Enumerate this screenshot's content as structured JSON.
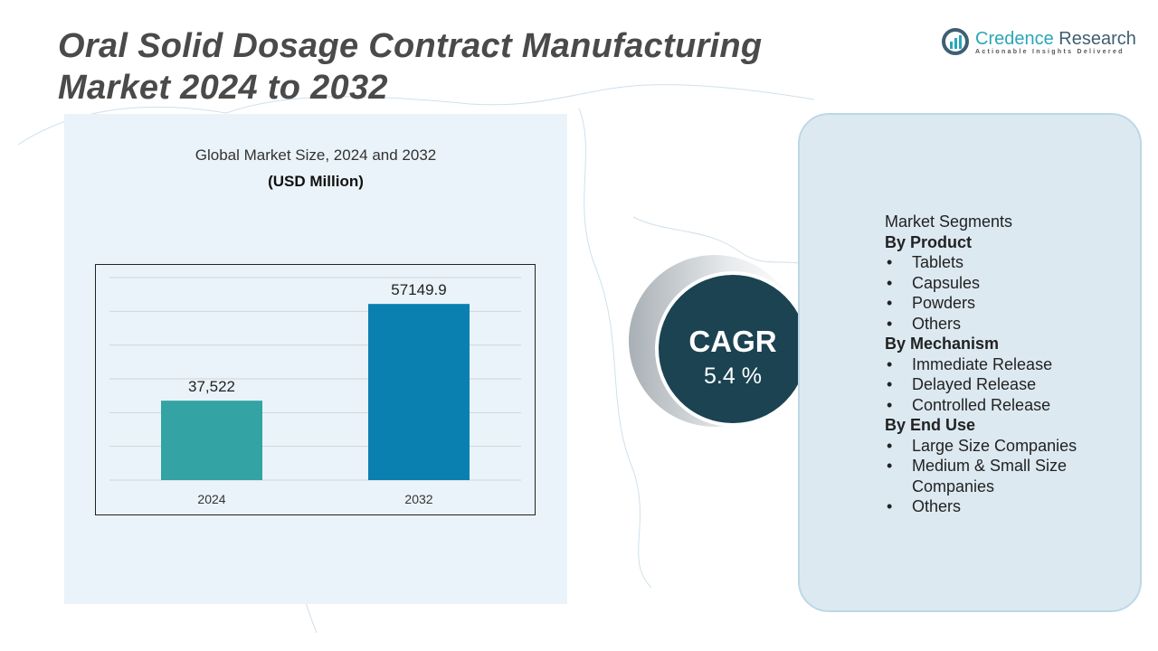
{
  "title_line1": "Oral Solid Dosage Contract Manufacturing",
  "title_line2": "Market 2024 to 2032",
  "logo": {
    "name_part1": "Credence",
    "name_part2": " Research",
    "tagline": "Actionable Insights Delivered"
  },
  "chart_title": "Global Market Size, 2024 and 2032",
  "chart_unit": "(USD Million)",
  "chart_data": {
    "type": "bar",
    "categories": [
      "2024",
      "2032"
    ],
    "values": [
      37522,
      57149.9
    ],
    "value_labels": [
      "37,522",
      "57149.9"
    ],
    "colors": [
      "#33a3a3",
      "#0a80b0"
    ],
    "ylim": [
      21400,
      62500
    ],
    "grid": true,
    "title": "Global Market Size, 2024 and 2032",
    "ylabel": "(USD Million)"
  },
  "cagr": {
    "label": "CAGR",
    "value": "5.4 %"
  },
  "segments": {
    "heading": "Market Segments",
    "groups": [
      {
        "title": "By Product",
        "items": [
          "Tablets",
          "Capsules",
          "Powders",
          "Others"
        ]
      },
      {
        "title": "By Mechanism",
        "items": [
          "Immediate Release",
          "Delayed Release",
          "Controlled Release"
        ]
      },
      {
        "title": "By End Use",
        "items": [
          "Large Size Companies",
          "Medium & Small Size Companies",
          "Others"
        ]
      }
    ]
  },
  "colors": {
    "cagr_circle": "#1b4352",
    "panel_left": "#eaf3f9",
    "panel_right": "#dde9f1"
  }
}
